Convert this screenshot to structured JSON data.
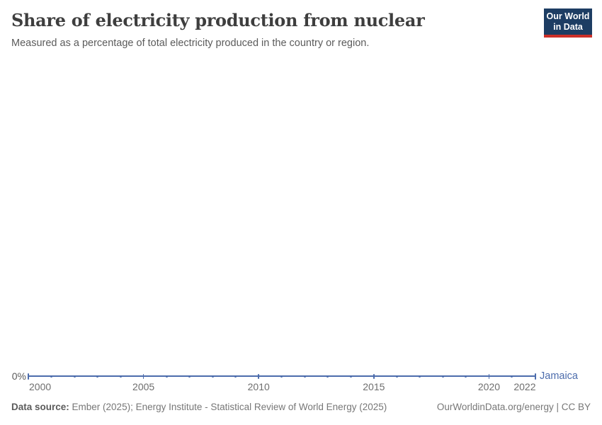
{
  "header": {
    "title": "Share of electricity production from nuclear",
    "subtitle": "Measured as a percentage of total electricity produced in the country or region.",
    "logo": {
      "line1": "Our World",
      "line2": "in Data"
    }
  },
  "chart_data": {
    "type": "line",
    "title": "Share of electricity production from nuclear",
    "xlabel": "",
    "ylabel": "",
    "xlim": [
      2000,
      2022
    ],
    "ylim": [
      0,
      0
    ],
    "grid": false,
    "legend_position": "end-of-line",
    "x_ticks": [
      2000,
      2005,
      2010,
      2015,
      2020,
      2022
    ],
    "y_ticks": [
      "0%"
    ],
    "series": [
      {
        "name": "Jamaica",
        "color": "#4c6cac",
        "x": [
          2000,
          2001,
          2002,
          2003,
          2004,
          2005,
          2006,
          2007,
          2008,
          2009,
          2010,
          2011,
          2012,
          2013,
          2014,
          2015,
          2016,
          2017,
          2018,
          2019,
          2020,
          2021,
          2022
        ],
        "values": [
          0,
          0,
          0,
          0,
          0,
          0,
          0,
          0,
          0,
          0,
          0,
          0,
          0,
          0,
          0,
          0,
          0,
          0,
          0,
          0,
          0,
          0,
          0
        ]
      }
    ]
  },
  "footer": {
    "datasource_label": "Data source:",
    "datasource_text": " Ember (2025); Energy Institute - Statistical Review of World Energy (2025)",
    "right_text": "OurWorldinData.org/energy | CC BY"
  }
}
